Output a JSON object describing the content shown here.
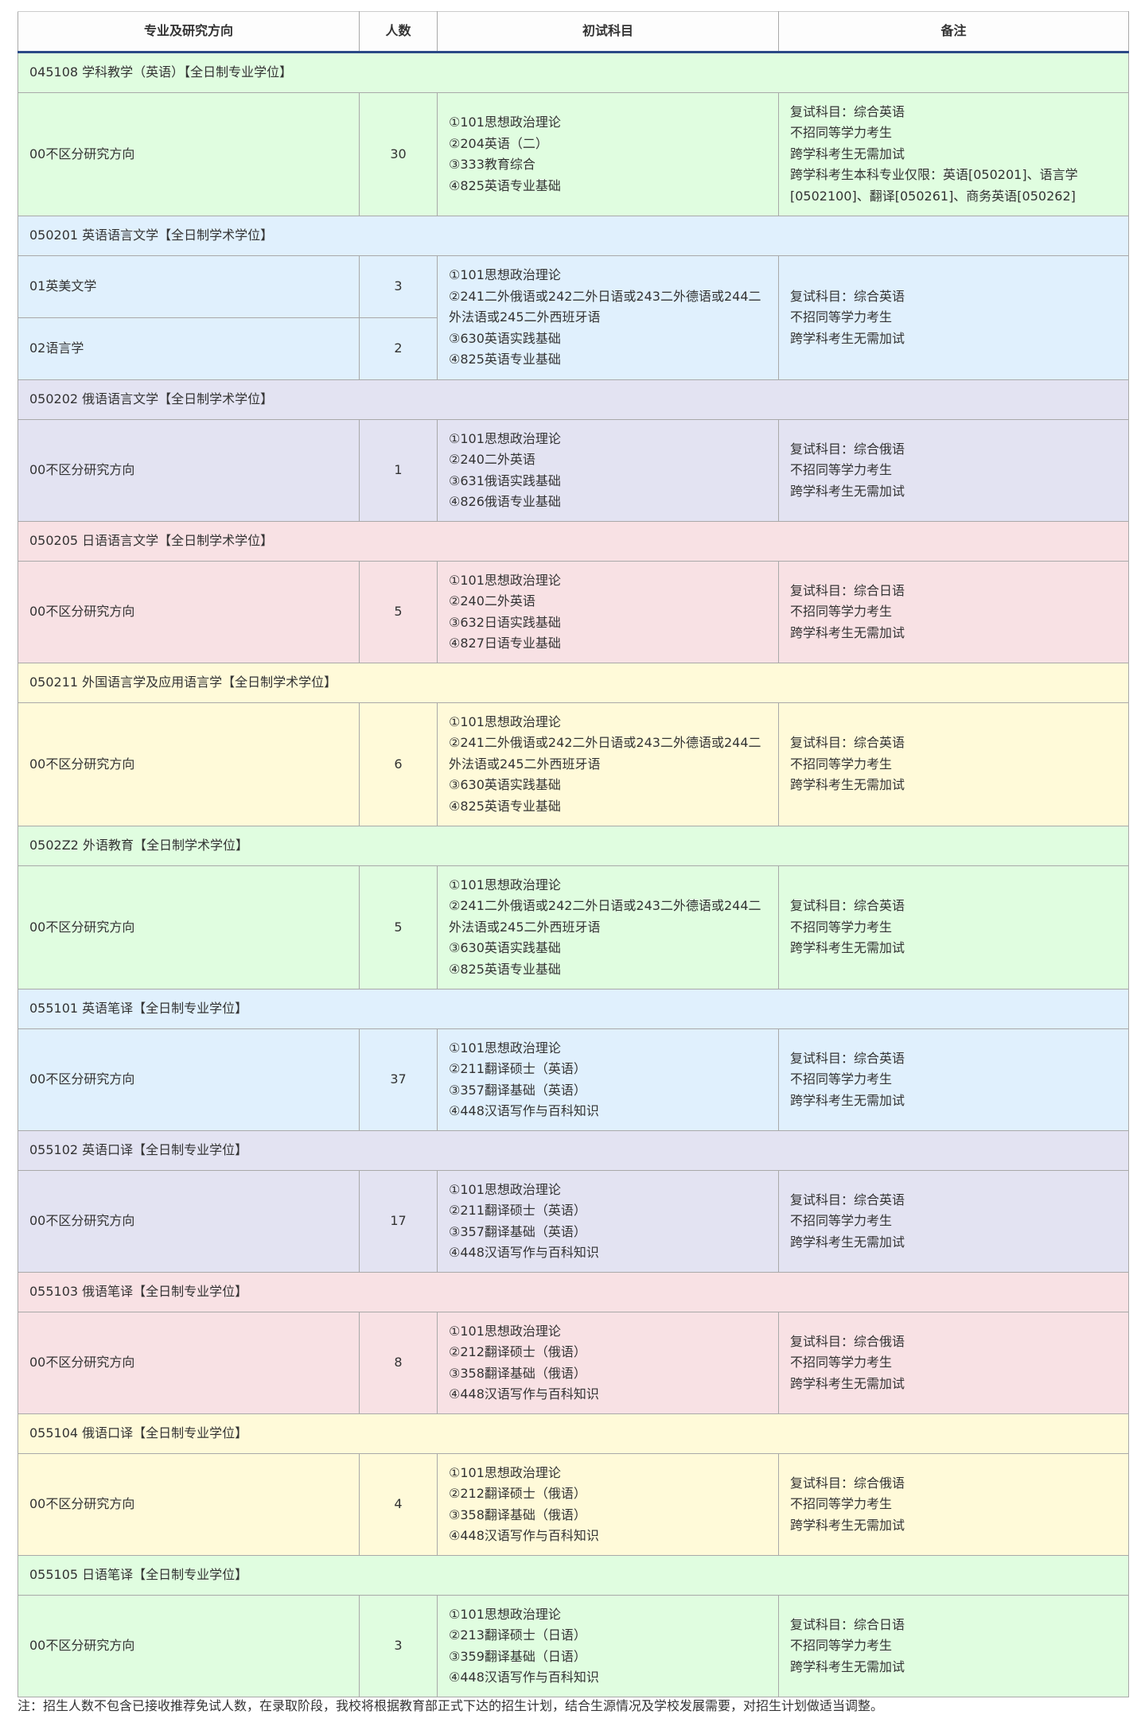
{
  "headers": [
    "专业及研究方向",
    "人数",
    "初试科目",
    "备注"
  ],
  "groups": [
    {
      "title": "045108 学科教学（英语）【全日制专业学位】",
      "color": "green",
      "rows": [
        {
          "direction": "00不区分研究方向",
          "count": "30"
        }
      ],
      "subjects": [
        "①101思想政治理论",
        "②204英语（二）",
        "③333教育综合",
        "④825英语专业基础"
      ],
      "notes": [
        "复试科目：综合英语",
        "不招同等学力考生",
        "跨学科考生无需加试",
        "跨学科考生本科专业仅限：英语[050201]、语言学[0502100]、翻译[050261]、商务英语[050262]"
      ]
    },
    {
      "title": "050201 英语语言文学【全日制学术学位】",
      "color": "blue",
      "rows": [
        {
          "direction": "01英美文学",
          "count": "3"
        },
        {
          "direction": "02语言学",
          "count": "2"
        }
      ],
      "subjects": [
        "①101思想政治理论",
        "②241二外俄语或242二外日语或243二外德语或244二外法语或245二外西班牙语",
        "③630英语实践基础",
        "④825英语专业基础"
      ],
      "notes": [
        "复试科目：综合英语",
        "不招同等学力考生",
        "跨学科考生无需加试"
      ]
    },
    {
      "title": "050202 俄语语言文学【全日制学术学位】",
      "color": "lav",
      "rows": [
        {
          "direction": "00不区分研究方向",
          "count": "1"
        }
      ],
      "subjects": [
        "①101思想政治理论",
        "②240二外英语",
        "③631俄语实践基础",
        "④826俄语专业基础"
      ],
      "notes": [
        "复试科目：综合俄语",
        "不招同等学力考生",
        "跨学科考生无需加试"
      ]
    },
    {
      "title": "050205 日语语言文学【全日制学术学位】",
      "color": "pink",
      "rows": [
        {
          "direction": "00不区分研究方向",
          "count": "5"
        }
      ],
      "subjects": [
        "①101思想政治理论",
        "②240二外英语",
        "③632日语实践基础",
        "④827日语专业基础"
      ],
      "notes": [
        "复试科目：综合日语",
        "不招同等学力考生",
        "跨学科考生无需加试"
      ]
    },
    {
      "title": "050211 外国语言学及应用语言学【全日制学术学位】",
      "color": "yellow",
      "rows": [
        {
          "direction": "00不区分研究方向",
          "count": "6"
        }
      ],
      "subjects": [
        "①101思想政治理论",
        "②241二外俄语或242二外日语或243二外德语或244二外法语或245二外西班牙语",
        "③630英语实践基础",
        "④825英语专业基础"
      ],
      "notes": [
        "复试科目：综合英语",
        "不招同等学力考生",
        "跨学科考生无需加试"
      ]
    },
    {
      "title": "0502Z2 外语教育【全日制学术学位】",
      "color": "green",
      "rows": [
        {
          "direction": "00不区分研究方向",
          "count": "5"
        }
      ],
      "subjects": [
        "①101思想政治理论",
        "②241二外俄语或242二外日语或243二外德语或244二外法语或245二外西班牙语",
        "③630英语实践基础",
        "④825英语专业基础"
      ],
      "notes": [
        "复试科目：综合英语",
        "不招同等学力考生",
        "跨学科考生无需加试"
      ]
    },
    {
      "title": "055101 英语笔译【全日制专业学位】",
      "color": "blue",
      "rows": [
        {
          "direction": "00不区分研究方向",
          "count": "37"
        }
      ],
      "subjects": [
        "①101思想政治理论",
        "②211翻译硕士（英语）",
        "③357翻译基础（英语）",
        "④448汉语写作与百科知识"
      ],
      "notes": [
        "复试科目：综合英语",
        "不招同等学力考生",
        "跨学科考生无需加试"
      ]
    },
    {
      "title": "055102 英语口译【全日制专业学位】",
      "color": "lav",
      "rows": [
        {
          "direction": "00不区分研究方向",
          "count": "17"
        }
      ],
      "subjects": [
        "①101思想政治理论",
        "②211翻译硕士（英语）",
        "③357翻译基础（英语）",
        "④448汉语写作与百科知识"
      ],
      "notes": [
        "复试科目：综合英语",
        "不招同等学力考生",
        "跨学科考生无需加试"
      ]
    },
    {
      "title": "055103 俄语笔译【全日制专业学位】",
      "color": "pink",
      "rows": [
        {
          "direction": "00不区分研究方向",
          "count": "8"
        }
      ],
      "subjects": [
        "①101思想政治理论",
        "②212翻译硕士（俄语）",
        "③358翻译基础（俄语）",
        "④448汉语写作与百科知识"
      ],
      "notes": [
        "复试科目：综合俄语",
        "不招同等学力考生",
        "跨学科考生无需加试"
      ]
    },
    {
      "title": "055104 俄语口译【全日制专业学位】",
      "color": "yellow",
      "rows": [
        {
          "direction": "00不区分研究方向",
          "count": "4"
        }
      ],
      "subjects": [
        "①101思想政治理论",
        "②212翻译硕士（俄语）",
        "③358翻译基础（俄语）",
        "④448汉语写作与百科知识"
      ],
      "notes": [
        "复试科目：综合俄语",
        "不招同等学力考生",
        "跨学科考生无需加试"
      ]
    },
    {
      "title": "055105 日语笔译【全日制专业学位】",
      "color": "green",
      "rows": [
        {
          "direction": "00不区分研究方向",
          "count": "3"
        }
      ],
      "subjects": [
        "①101思想政治理论",
        "②213翻译硕士（日语）",
        "③359翻译基础（日语）",
        "④448汉语写作与百科知识"
      ],
      "notes": [
        "复试科目：综合日语",
        "不招同等学力考生",
        "跨学科考生无需加试"
      ]
    }
  ],
  "footnote": "注：招生人数不包含已接收推荐免试人数，在录取阶段，我校将根据教育部正式下达的招生计划，结合生源情况及学校发展需要，对招生计划做适当调整。"
}
